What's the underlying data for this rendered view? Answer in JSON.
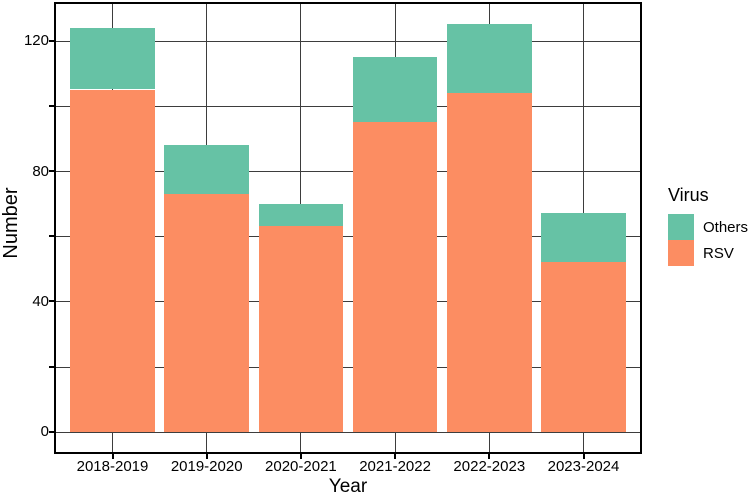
{
  "chart_data": {
    "type": "bar",
    "stacked": true,
    "title": "",
    "xlabel": "Year",
    "ylabel": "Number",
    "categories": [
      "2018-2019",
      "2019-2020",
      "2020-2021",
      "2021-2022",
      "2022-2023",
      "2023-2024"
    ],
    "series": [
      {
        "name": "RSV",
        "color": "#FC8D62",
        "values": [
          105,
          73,
          63,
          95,
          104,
          52
        ]
      },
      {
        "name": "Others",
        "color": "#66C2A5",
        "values": [
          19,
          15,
          7,
          20,
          21,
          15
        ]
      }
    ],
    "stack_order_bottom_to_top": [
      "RSV",
      "Others"
    ],
    "totals": [
      124,
      88,
      70,
      115,
      125,
      67
    ],
    "ylim": [
      -6.25,
      131.25
    ],
    "y_gridlines": [
      0,
      20,
      40,
      60,
      80,
      100,
      120
    ],
    "y_labeled_ticks": [
      0,
      40,
      80,
      120
    ],
    "y_tick_labels": [
      "0",
      "40",
      "80",
      "120"
    ],
    "grid": true,
    "legend": {
      "title": "Virus",
      "position": "right",
      "entries": [
        {
          "label": "Others",
          "color": "#66C2A5"
        },
        {
          "label": "RSV",
          "color": "#FC8D62"
        }
      ]
    },
    "style": {
      "grid_color": "#3d3d3d",
      "border_color": "#000000",
      "text_color": "#000000",
      "bar_rel_width": 0.9
    }
  }
}
